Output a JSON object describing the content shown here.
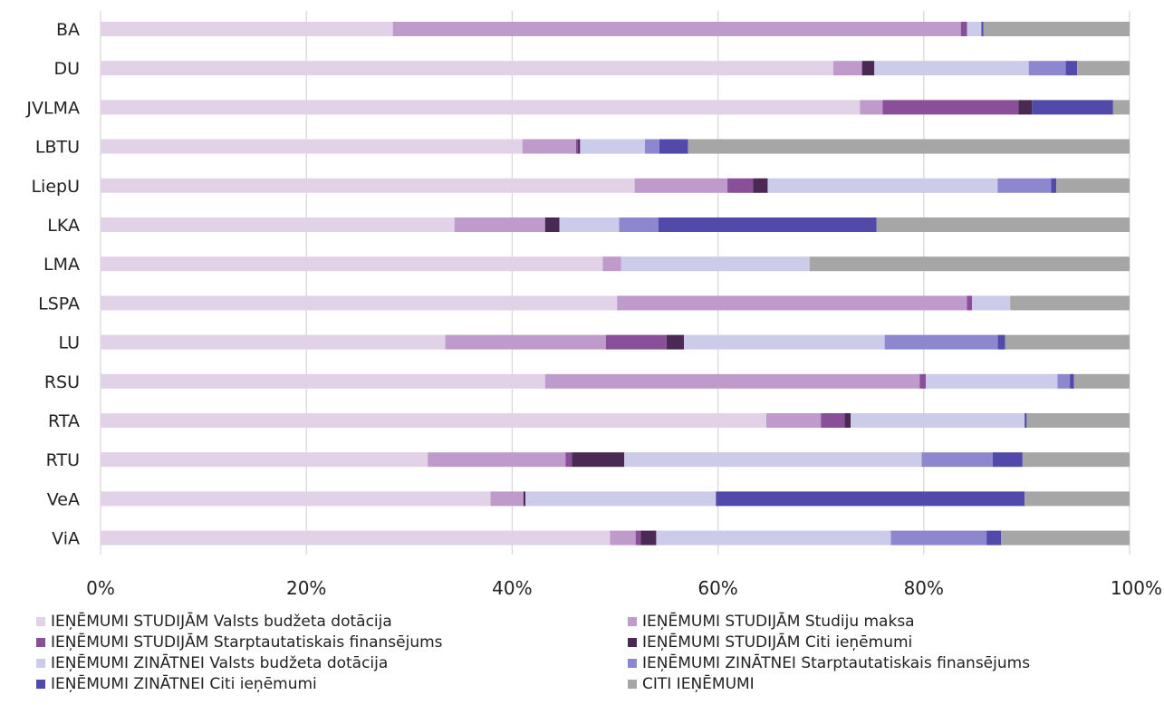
{
  "chart_data": {
    "type": "bar",
    "orientation": "horizontal",
    "stacked": "percent",
    "categories": [
      "BA",
      "DU",
      "JVLMA",
      "LBTU",
      "LiepU",
      "LKA",
      "LMA",
      "LSPA",
      "LU",
      "RSU",
      "RTA",
      "RTU",
      "VeA",
      "ViA"
    ],
    "xlim": [
      0,
      100
    ],
    "xticks": [
      "0%",
      "20%",
      "40%",
      "60%",
      "80%",
      "100%"
    ],
    "grid": "vertical",
    "legend_position": "bottom",
    "series": [
      {
        "name": "IEŅĒMUMI STUDIJĀM Valsts budžeta dotācija",
        "color": "#e1d2e8",
        "values": [
          28.4,
          71.2,
          73.8,
          41.0,
          51.8,
          34.4,
          48.8,
          50.2,
          33.5,
          43.2,
          64.7,
          31.8,
          37.9,
          49.5
        ]
      },
      {
        "name": "IEŅĒMUMI STUDIJĀM Studiju maksa",
        "color": "#bf9bcc",
        "values": [
          55.2,
          2.8,
          2.2,
          5.2,
          9.0,
          8.8,
          1.8,
          34.0,
          15.6,
          36.4,
          5.3,
          13.4,
          3.2,
          2.5
        ]
      },
      {
        "name": "IEŅĒMUMI STUDIJĀM Starptautatiskais finansējums",
        "color": "#8a4f99",
        "values": [
          0.6,
          0,
          13.2,
          0.2,
          2.5,
          0,
          0,
          0.5,
          5.9,
          0.6,
          2.3,
          0.6,
          0,
          0.5
        ]
      },
      {
        "name": "IEŅĒMUMI STUDIJĀM Citi ieņēmumi",
        "color": "#4a2a55",
        "values": [
          0,
          1.2,
          1.3,
          0.2,
          1.4,
          1.4,
          0,
          0,
          1.7,
          0,
          0.6,
          5.1,
          0.2,
          1.5
        ]
      },
      {
        "name": "IEŅĒMUMI ZINĀTNEI Valsts budžeta dotācija",
        "color": "#cccbe9",
        "values": [
          1.4,
          15.0,
          0,
          6.3,
          22.3,
          5.8,
          18.3,
          3.7,
          19.5,
          12.8,
          16.9,
          28.9,
          18.5,
          22.8
        ]
      },
      {
        "name": "IEŅĒMUMI ZINĀTNEI Starptautatiskais finansējums",
        "color": "#8d87d0",
        "values": [
          0,
          3.6,
          0,
          1.4,
          5.2,
          3.8,
          0,
          0,
          11.0,
          1.2,
          0,
          6.9,
          0,
          9.3
        ]
      },
      {
        "name": "IEŅĒMUMI ZINĀTNEI Citi ieņēmumi",
        "color": "#524aaa",
        "values": [
          0.2,
          1.1,
          7.9,
          2.8,
          0.5,
          21.2,
          0,
          0,
          0.7,
          0.4,
          0.2,
          2.9,
          30.0,
          1.4
        ]
      },
      {
        "name": "CITI IEŅĒMUMI",
        "color": "#a6a6a6",
        "values": [
          14.2,
          5.1,
          1.6,
          42.9,
          7.1,
          24.6,
          31.1,
          11.6,
          12.1,
          5.4,
          10.0,
          10.4,
          10.2,
          12.5
        ]
      }
    ]
  }
}
